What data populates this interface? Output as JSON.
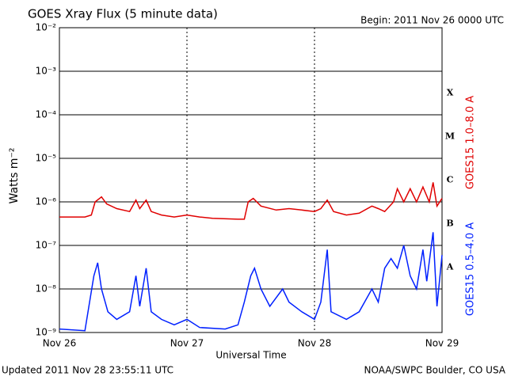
{
  "chart_data": {
    "type": "line",
    "title": "GOES Xray Flux (5 minute data)",
    "subtitle": "Begin:  2011 Nov 26 0000 UTC",
    "y_label": "Watts m⁻²",
    "x_label": "Universal Time",
    "footer_left": "Updated 2011 Nov 28 23:55:11 UTC",
    "footer_right": "NOAA/SWPC Boulder, CO USA",
    "log_scale": true,
    "grid": true,
    "xlim": [
      0,
      3
    ],
    "xticks": [
      {
        "value": 0,
        "label": "Nov 26"
      },
      {
        "value": 1,
        "label": "Nov 27"
      },
      {
        "value": 2,
        "label": "Nov 28"
      },
      {
        "value": 3,
        "label": "Nov 29"
      }
    ],
    "ylim": [
      1e-09,
      0.01
    ],
    "yticks": [
      {
        "value": 1e-09,
        "label": "10⁻⁹"
      },
      {
        "value": 1e-08,
        "label": "10⁻⁸"
      },
      {
        "value": 1e-07,
        "label": "10⁻⁷"
      },
      {
        "value": 1e-06,
        "label": "10⁻⁶"
      },
      {
        "value": 1e-05,
        "label": "10⁻⁵"
      },
      {
        "value": 0.0001,
        "label": "10⁻⁴"
      },
      {
        "value": 0.001,
        "label": "10⁻³"
      },
      {
        "value": 0.01,
        "label": "10⁻²"
      }
    ],
    "flare_classes": [
      {
        "label": "X",
        "value": 0.0001
      },
      {
        "label": "M",
        "value": 1e-05
      },
      {
        "label": "C",
        "value": 1e-06
      },
      {
        "label": "B",
        "value": 1e-07
      },
      {
        "label": "A",
        "value": 1e-08
      }
    ],
    "series": [
      {
        "name": "GOES15 1.0–8.0 A",
        "color": "#e00000",
        "x": [
          0,
          0.2,
          0.25,
          0.28,
          0.33,
          0.37,
          0.45,
          0.55,
          0.6,
          0.63,
          0.68,
          0.72,
          0.8,
          0.9,
          1.0,
          1.1,
          1.2,
          1.4,
          1.45,
          1.48,
          1.52,
          1.58,
          1.7,
          1.8,
          1.9,
          2.0,
          2.05,
          2.1,
          2.15,
          2.25,
          2.35,
          2.45,
          2.5,
          2.55,
          2.62,
          2.65,
          2.7,
          2.75,
          2.8,
          2.85,
          2.9,
          2.93,
          2.96,
          3.0
        ],
        "values": [
          4.5e-07,
          4.5e-07,
          5e-07,
          1e-06,
          1.3e-06,
          9e-07,
          7e-07,
          6e-07,
          1.1e-06,
          7e-07,
          1.1e-06,
          6e-07,
          5e-07,
          4.5e-07,
          5e-07,
          4.5e-07,
          4.2e-07,
          4e-07,
          4e-07,
          1e-06,
          1.2e-06,
          8e-07,
          6.5e-07,
          7e-07,
          6.5e-07,
          6e-07,
          7e-07,
          1.1e-06,
          6e-07,
          5e-07,
          5.5e-07,
          8e-07,
          7e-07,
          6e-07,
          1e-06,
          2e-06,
          1e-06,
          2e-06,
          1e-06,
          2.2e-06,
          1e-06,
          2.8e-06,
          8e-07,
          1.2e-06
        ]
      },
      {
        "name": "GOES15 0.5–4.0 A",
        "color": "#0020ff",
        "x": [
          0,
          0.2,
          0.27,
          0.3,
          0.33,
          0.38,
          0.45,
          0.55,
          0.6,
          0.63,
          0.68,
          0.72,
          0.8,
          0.9,
          1.0,
          1.1,
          1.3,
          1.4,
          1.45,
          1.5,
          1.53,
          1.58,
          1.65,
          1.75,
          1.8,
          1.9,
          2.0,
          2.05,
          2.1,
          2.13,
          2.25,
          2.35,
          2.45,
          2.5,
          2.55,
          2.6,
          2.65,
          2.7,
          2.75,
          2.8,
          2.85,
          2.88,
          2.93,
          2.96,
          3.0
        ],
        "values": [
          1.2e-09,
          1.1e-09,
          2e-08,
          4e-08,
          1e-08,
          3e-09,
          2e-09,
          3e-09,
          2e-08,
          4e-09,
          3e-08,
          3e-09,
          2e-09,
          1.5e-09,
          2e-09,
          1.3e-09,
          1.2e-09,
          1.5e-09,
          5e-09,
          2e-08,
          3e-08,
          1e-08,
          4e-09,
          1e-08,
          5e-09,
          3e-09,
          2e-09,
          5e-09,
          8e-08,
          3e-09,
          2e-09,
          3e-09,
          1e-08,
          5e-09,
          3e-08,
          5e-08,
          3e-08,
          1e-07,
          2e-08,
          1e-08,
          8e-08,
          1.5e-08,
          2e-07,
          4e-09,
          6e-08
        ]
      }
    ]
  }
}
